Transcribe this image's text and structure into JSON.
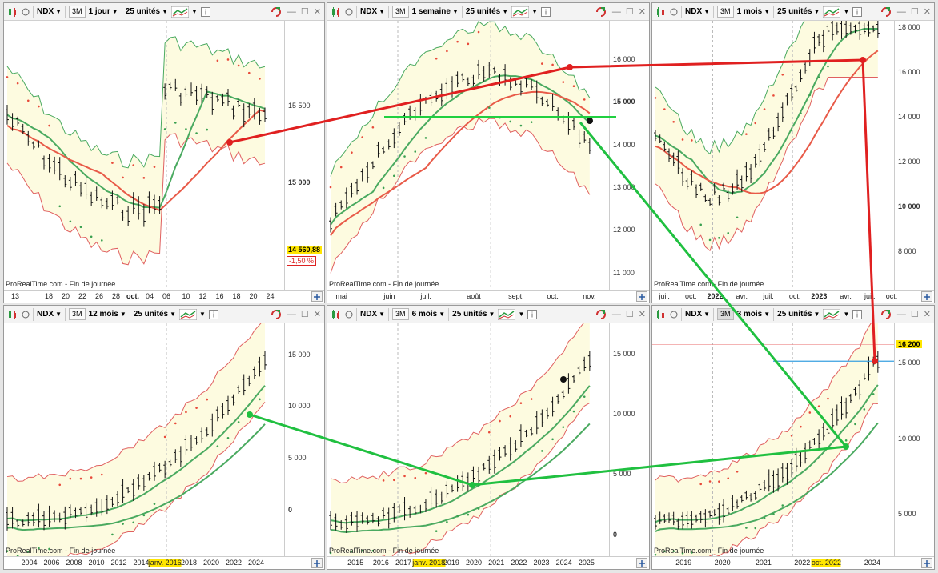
{
  "colors": {
    "band_fill": "#fdfbe0",
    "band_edge": "#e06060",
    "ma_green": "#4aaa60",
    "ma_red": "#e85a48",
    "sar": "#e84a3a",
    "sar_green": "#3aa050",
    "bar": "#111111",
    "red_line": "#e02020",
    "green_line": "#20c040",
    "level_line": "#3aa0e0",
    "hl": "#ffe600"
  },
  "panels": [
    {
      "id": "p1",
      "symbol": "NDX",
      "btn_3m": "3M",
      "timeframe": "1 jour",
      "units": "25 unités",
      "source": "ProRealTime.com - Fin de journée",
      "y_labels": [
        {
          "text": "15 500",
          "v": 15500,
          "bold": false
        },
        {
          "text": "15 000",
          "v": 15000,
          "bold": true
        }
      ],
      "ymin": 14300,
      "ymax": 16050,
      "x_labels": [
        {
          "text": "13",
          "f": 0.04,
          "bold": false
        },
        {
          "text": "18",
          "f": 0.16,
          "bold": false
        },
        {
          "text": "20",
          "f": 0.22,
          "bold": false
        },
        {
          "text": "22",
          "f": 0.28,
          "bold": false
        },
        {
          "text": "26",
          "f": 0.34,
          "bold": false
        },
        {
          "text": "28",
          "f": 0.4,
          "bold": false
        },
        {
          "text": "oct.",
          "f": 0.46,
          "bold": true
        },
        {
          "text": "04",
          "f": 0.52,
          "bold": false
        },
        {
          "text": "06",
          "f": 0.58,
          "bold": false
        },
        {
          "text": "10",
          "f": 0.65,
          "bold": false
        },
        {
          "text": "12",
          "f": 0.71,
          "bold": false
        },
        {
          "text": "16",
          "f": 0.77,
          "bold": false
        },
        {
          "text": "18",
          "f": 0.83,
          "bold": false
        },
        {
          "text": "20",
          "f": 0.89,
          "bold": false
        },
        {
          "text": "24",
          "f": 0.95,
          "bold": false
        }
      ],
      "price": "14 560,88",
      "change": "-1,50 %",
      "price_v": 14560
    },
    {
      "id": "p2",
      "symbol": "NDX",
      "btn_3m": "3M",
      "timeframe": "1 semaine",
      "units": "25 unités",
      "source": "ProRealTime.com - Fin de journée",
      "y_labels": [
        {
          "text": "16 000",
          "v": 16000,
          "bold": false
        },
        {
          "text": "15 000",
          "v": 15000,
          "bold": true
        },
        {
          "text": "14 000",
          "v": 14000,
          "bold": false
        },
        {
          "text": "13 000",
          "v": 13000,
          "bold": false
        },
        {
          "text": "12 000",
          "v": 12000,
          "bold": false
        },
        {
          "text": "11 000",
          "v": 11000,
          "bold": false
        }
      ],
      "ymin": 10600,
      "ymax": 16900,
      "x_labels": [
        {
          "text": "mai",
          "f": 0.05,
          "bold": false
        },
        {
          "text": "juin",
          "f": 0.22,
          "bold": false
        },
        {
          "text": "juil.",
          "f": 0.35,
          "bold": false
        },
        {
          "text": "août",
          "f": 0.52,
          "bold": false
        },
        {
          "text": "sept.",
          "f": 0.67,
          "bold": false
        },
        {
          "text": "oct.",
          "f": 0.8,
          "bold": false
        },
        {
          "text": "nov.",
          "f": 0.93,
          "bold": false
        }
      ]
    },
    {
      "id": "p3",
      "symbol": "NDX",
      "btn_3m": "3M",
      "timeframe": "1 mois",
      "units": "25 unités",
      "source": "ProRealTime.com - Fin de journée",
      "y_labels": [
        {
          "text": "18 000",
          "v": 18000,
          "bold": false
        },
        {
          "text": "16 000",
          "v": 16000,
          "bold": false
        },
        {
          "text": "14 000",
          "v": 14000,
          "bold": false
        },
        {
          "text": "12 000",
          "v": 12000,
          "bold": false
        },
        {
          "text": "10 000",
          "v": 10000,
          "bold": true
        },
        {
          "text": "8 000",
          "v": 8000,
          "bold": false
        }
      ],
      "ymin": 6300,
      "ymax": 18300,
      "x_labels": [
        {
          "text": "juil.",
          "f": 0.05,
          "bold": false
        },
        {
          "text": "oct.",
          "f": 0.16,
          "bold": false
        },
        {
          "text": "2022",
          "f": 0.26,
          "bold": true
        },
        {
          "text": "avr.",
          "f": 0.37,
          "bold": false
        },
        {
          "text": "juil.",
          "f": 0.48,
          "bold": false
        },
        {
          "text": "oct.",
          "f": 0.59,
          "bold": false
        },
        {
          "text": "2023",
          "f": 0.69,
          "bold": true
        },
        {
          "text": "avr.",
          "f": 0.8,
          "bold": false
        },
        {
          "text": "juil.",
          "f": 0.9,
          "bold": false
        },
        {
          "text": "oct.",
          "f": 0.99,
          "bold": false
        }
      ]
    },
    {
      "id": "p4",
      "symbol": "NDX",
      "btn_3m": "3M",
      "timeframe": "12 mois",
      "units": "25 unités",
      "source": "ProRealTime.com - Fin de journée",
      "y_labels": [
        {
          "text": "15 000",
          "v": 15000,
          "bold": false
        },
        {
          "text": "10 000",
          "v": 10000,
          "bold": false
        },
        {
          "text": "5 000",
          "v": 5000,
          "bold": false
        },
        {
          "text": "0",
          "v": 0,
          "bold": true
        }
      ],
      "ymin": -4500,
      "ymax": 18000,
      "x_labels": [
        {
          "text": "2004",
          "f": 0.09,
          "bold": false
        },
        {
          "text": "2006",
          "f": 0.17,
          "bold": false
        },
        {
          "text": "2008",
          "f": 0.25,
          "bold": false
        },
        {
          "text": "2010",
          "f": 0.33,
          "bold": false
        },
        {
          "text": "2012",
          "f": 0.41,
          "bold": false
        },
        {
          "text": "2014",
          "f": 0.49,
          "bold": false
        },
        {
          "text": "janv. 2016",
          "f": 0.575,
          "bold": false,
          "hl": true
        },
        {
          "text": "2018",
          "f": 0.66,
          "bold": false
        },
        {
          "text": "2020",
          "f": 0.74,
          "bold": false
        },
        {
          "text": "2022",
          "f": 0.82,
          "bold": false
        },
        {
          "text": "2024",
          "f": 0.9,
          "bold": false
        }
      ]
    },
    {
      "id": "p5",
      "symbol": "NDX",
      "btn_3m": "3M",
      "timeframe": "6 mois",
      "units": "25 unités",
      "source": "ProRealTime.com - Fin de journée",
      "y_labels": [
        {
          "text": "15 000",
          "v": 15000,
          "bold": false
        },
        {
          "text": "10 000",
          "v": 10000,
          "bold": false
        },
        {
          "text": "5 000",
          "v": 5000,
          "bold": false
        },
        {
          "text": "0",
          "v": 0,
          "bold": true
        }
      ],
      "ymin": -1800,
      "ymax": 17500,
      "x_labels": [
        {
          "text": "2015",
          "f": 0.1,
          "bold": false
        },
        {
          "text": "2016",
          "f": 0.19,
          "bold": false
        },
        {
          "text": "2017",
          "f": 0.27,
          "bold": false
        },
        {
          "text": "janv. 2018",
          "f": 0.36,
          "bold": false,
          "hl": true
        },
        {
          "text": "2019",
          "f": 0.44,
          "bold": false
        },
        {
          "text": "2020",
          "f": 0.52,
          "bold": false
        },
        {
          "text": "2021",
          "f": 0.6,
          "bold": false
        },
        {
          "text": "2022",
          "f": 0.68,
          "bold": false
        },
        {
          "text": "2023",
          "f": 0.76,
          "bold": false
        },
        {
          "text": "2024",
          "f": 0.84,
          "bold": false
        },
        {
          "text": "2025",
          "f": 0.92,
          "bold": false
        }
      ]
    },
    {
      "id": "p6",
      "symbol": "NDX",
      "btn_3m": "3M",
      "timeframe": "3 mois",
      "units": "25 unités",
      "source": "ProRealTime.com - Fin de journée",
      "y_labels": [
        {
          "text": "15 000",
          "v": 15000,
          "bold": false
        },
        {
          "text": "10 000",
          "v": 10000,
          "bold": false
        },
        {
          "text": "5 000",
          "v": 5000,
          "bold": false
        }
      ],
      "ymin": 2200,
      "ymax": 17600,
      "x_labels": [
        {
          "text": "2019",
          "f": 0.13,
          "bold": false
        },
        {
          "text": "2020",
          "f": 0.29,
          "bold": false
        },
        {
          "text": "2021",
          "f": 0.46,
          "bold": false
        },
        {
          "text": "2022",
          "f": 0.62,
          "bold": false
        },
        {
          "text": "oct. 2022",
          "f": 0.72,
          "bold": false,
          "hl": true
        },
        {
          "text": "2024",
          "f": 0.91,
          "bold": false
        }
      ],
      "price": "16 200",
      "price_v": 16200
    }
  ]
}
